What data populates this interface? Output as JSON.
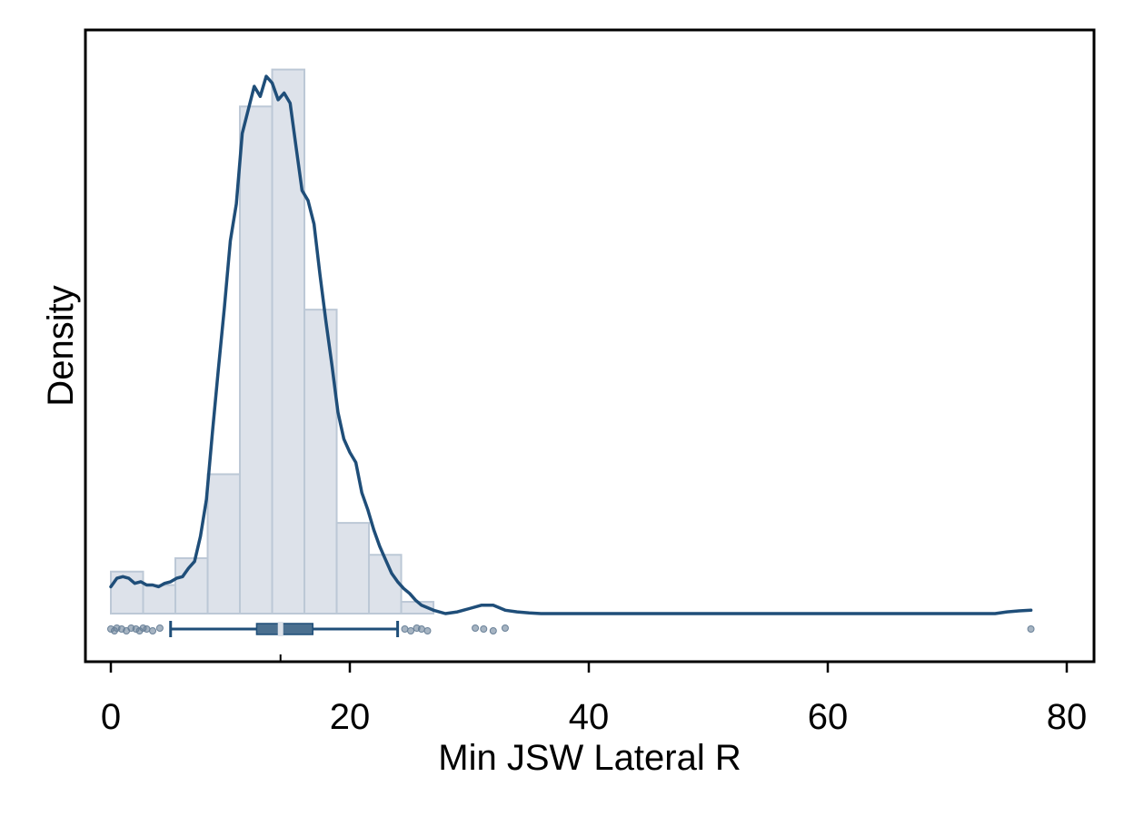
{
  "chart_data": {
    "type": "histogram",
    "xlabel": "Min JSW Lateral R",
    "ylabel": "Density",
    "xlim": [
      -2,
      82
    ],
    "x_ticks": [
      0,
      20,
      40,
      60,
      80
    ],
    "x_tick_labels": [
      "0",
      "20",
      "40",
      "60",
      "80"
    ],
    "y_ticks_shown": false,
    "grid": false,
    "legend": "none",
    "bin_width": 2.7,
    "bins": [
      {
        "x0": 0.0,
        "x1": 2.7,
        "density": 0.0125
      },
      {
        "x0": 2.7,
        "x1": 5.4,
        "density": 0.0085
      },
      {
        "x0": 5.4,
        "x1": 8.1,
        "density": 0.0165
      },
      {
        "x0": 8.1,
        "x1": 10.8,
        "density": 0.0415
      },
      {
        "x0": 10.8,
        "x1": 13.5,
        "density": 0.151
      },
      {
        "x0": 13.5,
        "x1": 16.2,
        "density": 0.162
      },
      {
        "x0": 16.2,
        "x1": 18.9,
        "density": 0.0905
      },
      {
        "x0": 18.9,
        "x1": 21.6,
        "density": 0.027
      },
      {
        "x0": 21.6,
        "x1": 24.3,
        "density": 0.0175
      },
      {
        "x0": 24.3,
        "x1": 27.0,
        "density": 0.0035
      }
    ],
    "kde": {
      "x": [
        0,
        0.5,
        1,
        1.5,
        2,
        2.5,
        3,
        3.5,
        4,
        4.5,
        5,
        5.5,
        6,
        6.5,
        7,
        7.5,
        8,
        8.5,
        9,
        9.5,
        10,
        10.5,
        11,
        11.5,
        12,
        12.5,
        13,
        13.5,
        14,
        14.5,
        15,
        15.5,
        16,
        16.5,
        17,
        17.5,
        18,
        18.5,
        19,
        19.5,
        20,
        20.5,
        21,
        21.5,
        22,
        22.5,
        23,
        23.5,
        24,
        24.5,
        25,
        25.5,
        26,
        27,
        28,
        29,
        30,
        31,
        32,
        33,
        34,
        35,
        36,
        40,
        50,
        60,
        70,
        74,
        75,
        76,
        77
      ],
      "y": [
        0.008,
        0.0105,
        0.011,
        0.0105,
        0.009,
        0.0095,
        0.0085,
        0.0085,
        0.008,
        0.009,
        0.0095,
        0.0105,
        0.011,
        0.0135,
        0.0155,
        0.023,
        0.034,
        0.054,
        0.073,
        0.091,
        0.111,
        0.122,
        0.143,
        0.15,
        0.157,
        0.154,
        0.16,
        0.158,
        0.153,
        0.155,
        0.152,
        0.139,
        0.126,
        0.123,
        0.116,
        0.101,
        0.087,
        0.074,
        0.06,
        0.052,
        0.048,
        0.045,
        0.036,
        0.031,
        0.025,
        0.02,
        0.016,
        0.012,
        0.0095,
        0.0075,
        0.006,
        0.004,
        0.0025,
        0.001,
        0.0,
        0.0005,
        0.0015,
        0.0025,
        0.0025,
        0.001,
        0.0005,
        0.0002,
        0.0,
        0.0,
        0.0,
        0.0,
        0.0,
        0.0,
        0.0005,
        0.0008,
        0.001
      ]
    },
    "boxplot": {
      "whisker_low": 5.0,
      "q1": 12.2,
      "median": 14.2,
      "q3": 16.9,
      "whisker_high": 24.0,
      "outliers": [
        0.0,
        0.3,
        0.5,
        0.9,
        1.3,
        1.7,
        2.1,
        2.4,
        2.7,
        3.0,
        3.5,
        4.1,
        24.6,
        25.1,
        25.6,
        26.0,
        26.5,
        30.5,
        31.2,
        32.0,
        33.0,
        77.0
      ]
    },
    "colors": {
      "bar_fill": "#dde2ea",
      "bar_stroke": "#bcc8d6",
      "kde_line": "#1f4e79",
      "box_fill": "#4a6f8f",
      "whisker": "#1f4e79",
      "median_mark": "#dde2ea",
      "outlier": "#6b8299",
      "frame": "#000000"
    }
  }
}
